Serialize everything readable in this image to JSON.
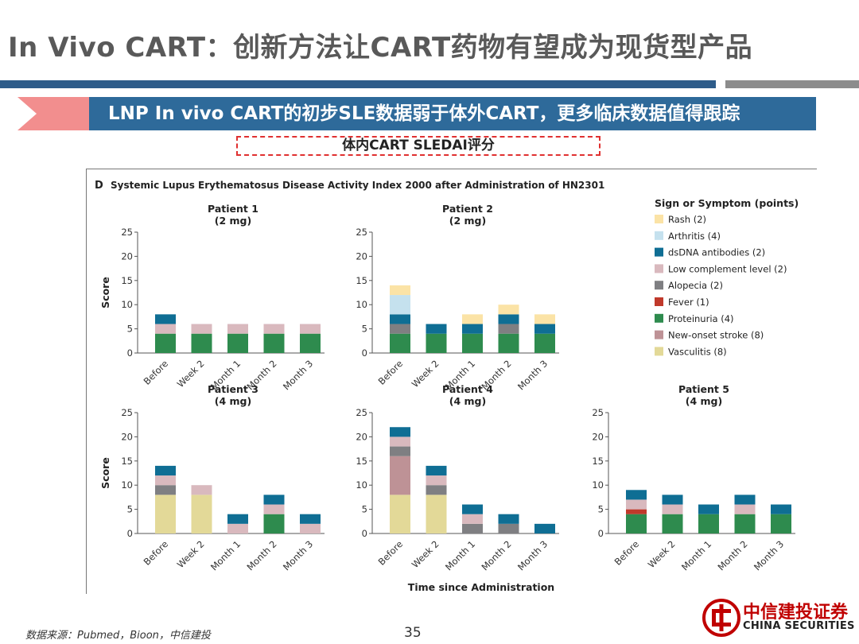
{
  "page": {
    "title": "In Vivo CART：创新方法让CART药物有望成为现货型产品",
    "banner": "LNP In vivo CART的初步SLE数据弱于体外CART，更多临床数据值得跟踪",
    "subtitle": "体内CART SLEDAI评分",
    "source": "数据来源：Pubmed，Bioon，中信建投",
    "page_number": "35",
    "logo_cn": "中信建投证券",
    "logo_en": "CHINA SECURITIES",
    "colors": {
      "title": "#595959",
      "banner": "#2E6A9A",
      "banner_accent": "#F28E8E",
      "rule_blue": "#2E5C8A",
      "rule_gray": "#8C8C8C",
      "logo_red": "#C00000",
      "dash_box": "#E03030"
    }
  },
  "chart_data": {
    "type": "bar",
    "stacked": true,
    "panel_letter": "D",
    "title": "Systemic Lupus Erythematosus Disease Activity Index 2000 after Administration of HN2301",
    "xlabel": "Time since Administration",
    "ylabel": "Score",
    "ylim": [
      0,
      25
    ],
    "yticks": [
      0,
      5,
      10,
      15,
      20,
      25
    ],
    "categories": [
      "Before",
      "Week 2",
      "Month 1",
      "Month 2",
      "Month 3"
    ],
    "legend": {
      "title": "Sign or Symptom (points)",
      "position": "right",
      "items": [
        {
          "key": "rash",
          "label": "Rash (2)",
          "color": "#FBE3A6"
        },
        {
          "key": "arthritis",
          "label": "Arthritis (4)",
          "color": "#C5E1EE"
        },
        {
          "key": "dsdna",
          "label": "dsDNA antibodies (2)",
          "color": "#0F6E94"
        },
        {
          "key": "complement",
          "label": "Low complement level (2)",
          "color": "#D9B9BE"
        },
        {
          "key": "alopecia",
          "label": "Alopecia (2)",
          "color": "#7F7F82"
        },
        {
          "key": "fever",
          "label": "Fever (1)",
          "color": "#C0392B"
        },
        {
          "key": "proteinuria",
          "label": "Proteinuria (4)",
          "color": "#2E8B4E"
        },
        {
          "key": "stroke",
          "label": "New-onset stroke (8)",
          "color": "#BE9296"
        },
        {
          "key": "vasculitis",
          "label": "Vasculitis (8)",
          "color": "#E3D998"
        }
      ]
    },
    "stack_order": [
      "vasculitis",
      "stroke",
      "proteinuria",
      "fever",
      "alopecia",
      "complement",
      "dsdna",
      "arthritis",
      "rash"
    ],
    "panels": [
      {
        "name": "Patient 1",
        "dose": "(2 mg)",
        "bars": [
          {
            "proteinuria": 4,
            "complement": 2,
            "dsdna": 2
          },
          {
            "proteinuria": 4,
            "complement": 2
          },
          {
            "proteinuria": 4,
            "complement": 2
          },
          {
            "proteinuria": 4,
            "complement": 2
          },
          {
            "proteinuria": 4,
            "complement": 2
          }
        ]
      },
      {
        "name": "Patient 2",
        "dose": "(2 mg)",
        "bars": [
          {
            "proteinuria": 4,
            "arthritis": 4,
            "rash": 2,
            "alopecia": 2,
            "dsdna": 2
          },
          {
            "proteinuria": 4,
            "dsdna": 2
          },
          {
            "proteinuria": 4,
            "dsdna": 2,
            "rash": 2
          },
          {
            "proteinuria": 4,
            "dsdna": 2,
            "rash": 2,
            "alopecia": 2
          },
          {
            "proteinuria": 4,
            "dsdna": 2,
            "rash": 2
          }
        ]
      },
      {
        "name": "Patient 3",
        "dose": "(4 mg)",
        "bars": [
          {
            "vasculitis": 8,
            "alopecia": 2,
            "complement": 2,
            "dsdna": 2
          },
          {
            "vasculitis": 8,
            "complement": 2
          },
          {
            "complement": 2,
            "dsdna": 2
          },
          {
            "complement": 2,
            "dsdna": 2,
            "proteinuria": 4
          },
          {
            "complement": 2,
            "dsdna": 2
          }
        ]
      },
      {
        "name": "Patient 4",
        "dose": "(4 mg)",
        "bars": [
          {
            "vasculitis": 8,
            "stroke": 8,
            "complement": 2,
            "dsdna": 2,
            "alopecia": 2
          },
          {
            "vasculitis": 8,
            "complement": 2,
            "dsdna": 2,
            "alopecia": 2
          },
          {
            "complement": 2,
            "dsdna": 2,
            "alopecia": 2
          },
          {
            "dsdna": 2,
            "alopecia": 2
          },
          {
            "dsdna": 2
          }
        ]
      },
      {
        "name": "Patient 5",
        "dose": "(4 mg)",
        "bars": [
          {
            "proteinuria": 4,
            "complement": 2,
            "dsdna": 2,
            "fever": 1
          },
          {
            "proteinuria": 4,
            "complement": 2,
            "dsdna": 2
          },
          {
            "proteinuria": 4,
            "dsdna": 2
          },
          {
            "proteinuria": 4,
            "complement": 2,
            "dsdna": 2
          },
          {
            "proteinuria": 4,
            "dsdna": 2
          }
        ]
      }
    ]
  }
}
